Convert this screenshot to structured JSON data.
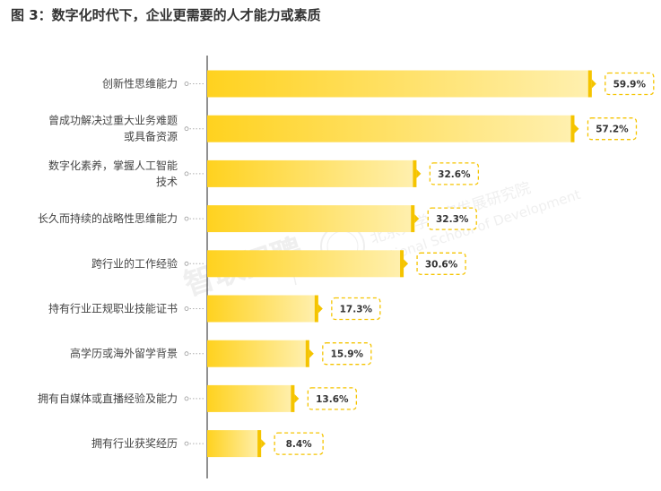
{
  "title": "图 3：数字化时代下，企业更需要的人才能力或素质",
  "watermark": {
    "brand": "智联招聘",
    "institute_cn": "北京大学国家发展研究院",
    "institute_en": "National School of Development"
  },
  "colors": {
    "bar_start": "#ffd21f",
    "bar_end": "#fff0b0",
    "bar_cap": "#f5c400",
    "label_border": "#f5c400",
    "axis": "#555555"
  },
  "chart_data": {
    "type": "bar",
    "orientation": "horizontal",
    "unit": "%",
    "xlim": [
      0,
      63
    ],
    "categories": [
      [
        "创新性思维能力"
      ],
      [
        "曾成功解决过重大业务难题",
        "或具备资源"
      ],
      [
        "数字化素养，掌握人工智能",
        "技术"
      ],
      [
        "长久而持续的战略性思维能力"
      ],
      [
        "跨行业的工作经验"
      ],
      [
        "持有行业正规职业技能证书"
      ],
      [
        "高学历或海外留学背景"
      ],
      [
        "拥有自媒体或直播经验及能力"
      ],
      [
        "拥有行业获奖经历"
      ]
    ],
    "values": [
      59.9,
      57.2,
      32.6,
      32.3,
      30.6,
      17.3,
      15.9,
      13.6,
      8.4
    ],
    "value_labels": [
      "59.9%",
      "57.2%",
      "32.6%",
      "32.3%",
      "30.6%",
      "17.3%",
      "15.9%",
      "13.6%",
      "8.4%"
    ]
  }
}
